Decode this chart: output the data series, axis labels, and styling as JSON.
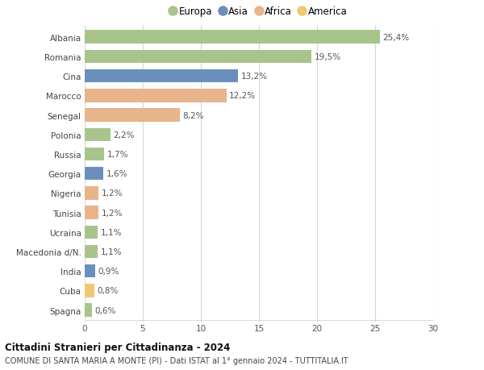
{
  "categories": [
    "Albania",
    "Romania",
    "Cina",
    "Marocco",
    "Senegal",
    "Polonia",
    "Russia",
    "Georgia",
    "Nigeria",
    "Tunisia",
    "Ucraina",
    "Macedonia d/N.",
    "India",
    "Cuba",
    "Spagna"
  ],
  "values": [
    25.4,
    19.5,
    13.2,
    12.2,
    8.2,
    2.2,
    1.7,
    1.6,
    1.2,
    1.2,
    1.1,
    1.1,
    0.9,
    0.8,
    0.6
  ],
  "labels": [
    "25,4%",
    "19,5%",
    "13,2%",
    "12,2%",
    "8,2%",
    "2,2%",
    "1,7%",
    "1,6%",
    "1,2%",
    "1,2%",
    "1,1%",
    "1,1%",
    "0,9%",
    "0,8%",
    "0,6%"
  ],
  "colors": [
    "#a8c48a",
    "#a8c48a",
    "#6b8fbd",
    "#e8b48a",
    "#e8b48a",
    "#a8c48a",
    "#a8c48a",
    "#6b8fbd",
    "#e8b48a",
    "#e8b48a",
    "#a8c48a",
    "#a8c48a",
    "#6b8fbd",
    "#f0c870",
    "#a8c48a"
  ],
  "legend_labels": [
    "Europa",
    "Asia",
    "Africa",
    "America"
  ],
  "legend_colors": [
    "#a8c48a",
    "#6b8fbd",
    "#e8b48a",
    "#f0c870"
  ],
  "title": "Cittadini Stranieri per Cittadinanza - 2024",
  "subtitle": "COMUNE DI SANTA MARIA A MONTE (PI) - Dati ISTAT al 1° gennaio 2024 - TUTTITALIA.IT",
  "xlim": [
    0,
    30
  ],
  "xticks": [
    0,
    5,
    10,
    15,
    20,
    25,
    30
  ],
  "background_color": "#ffffff",
  "grid_color": "#d8d8d8",
  "bar_height": 0.68,
  "label_fontsize": 7.5,
  "tick_fontsize": 7.5,
  "title_fontsize": 8.5,
  "subtitle_fontsize": 7.0
}
